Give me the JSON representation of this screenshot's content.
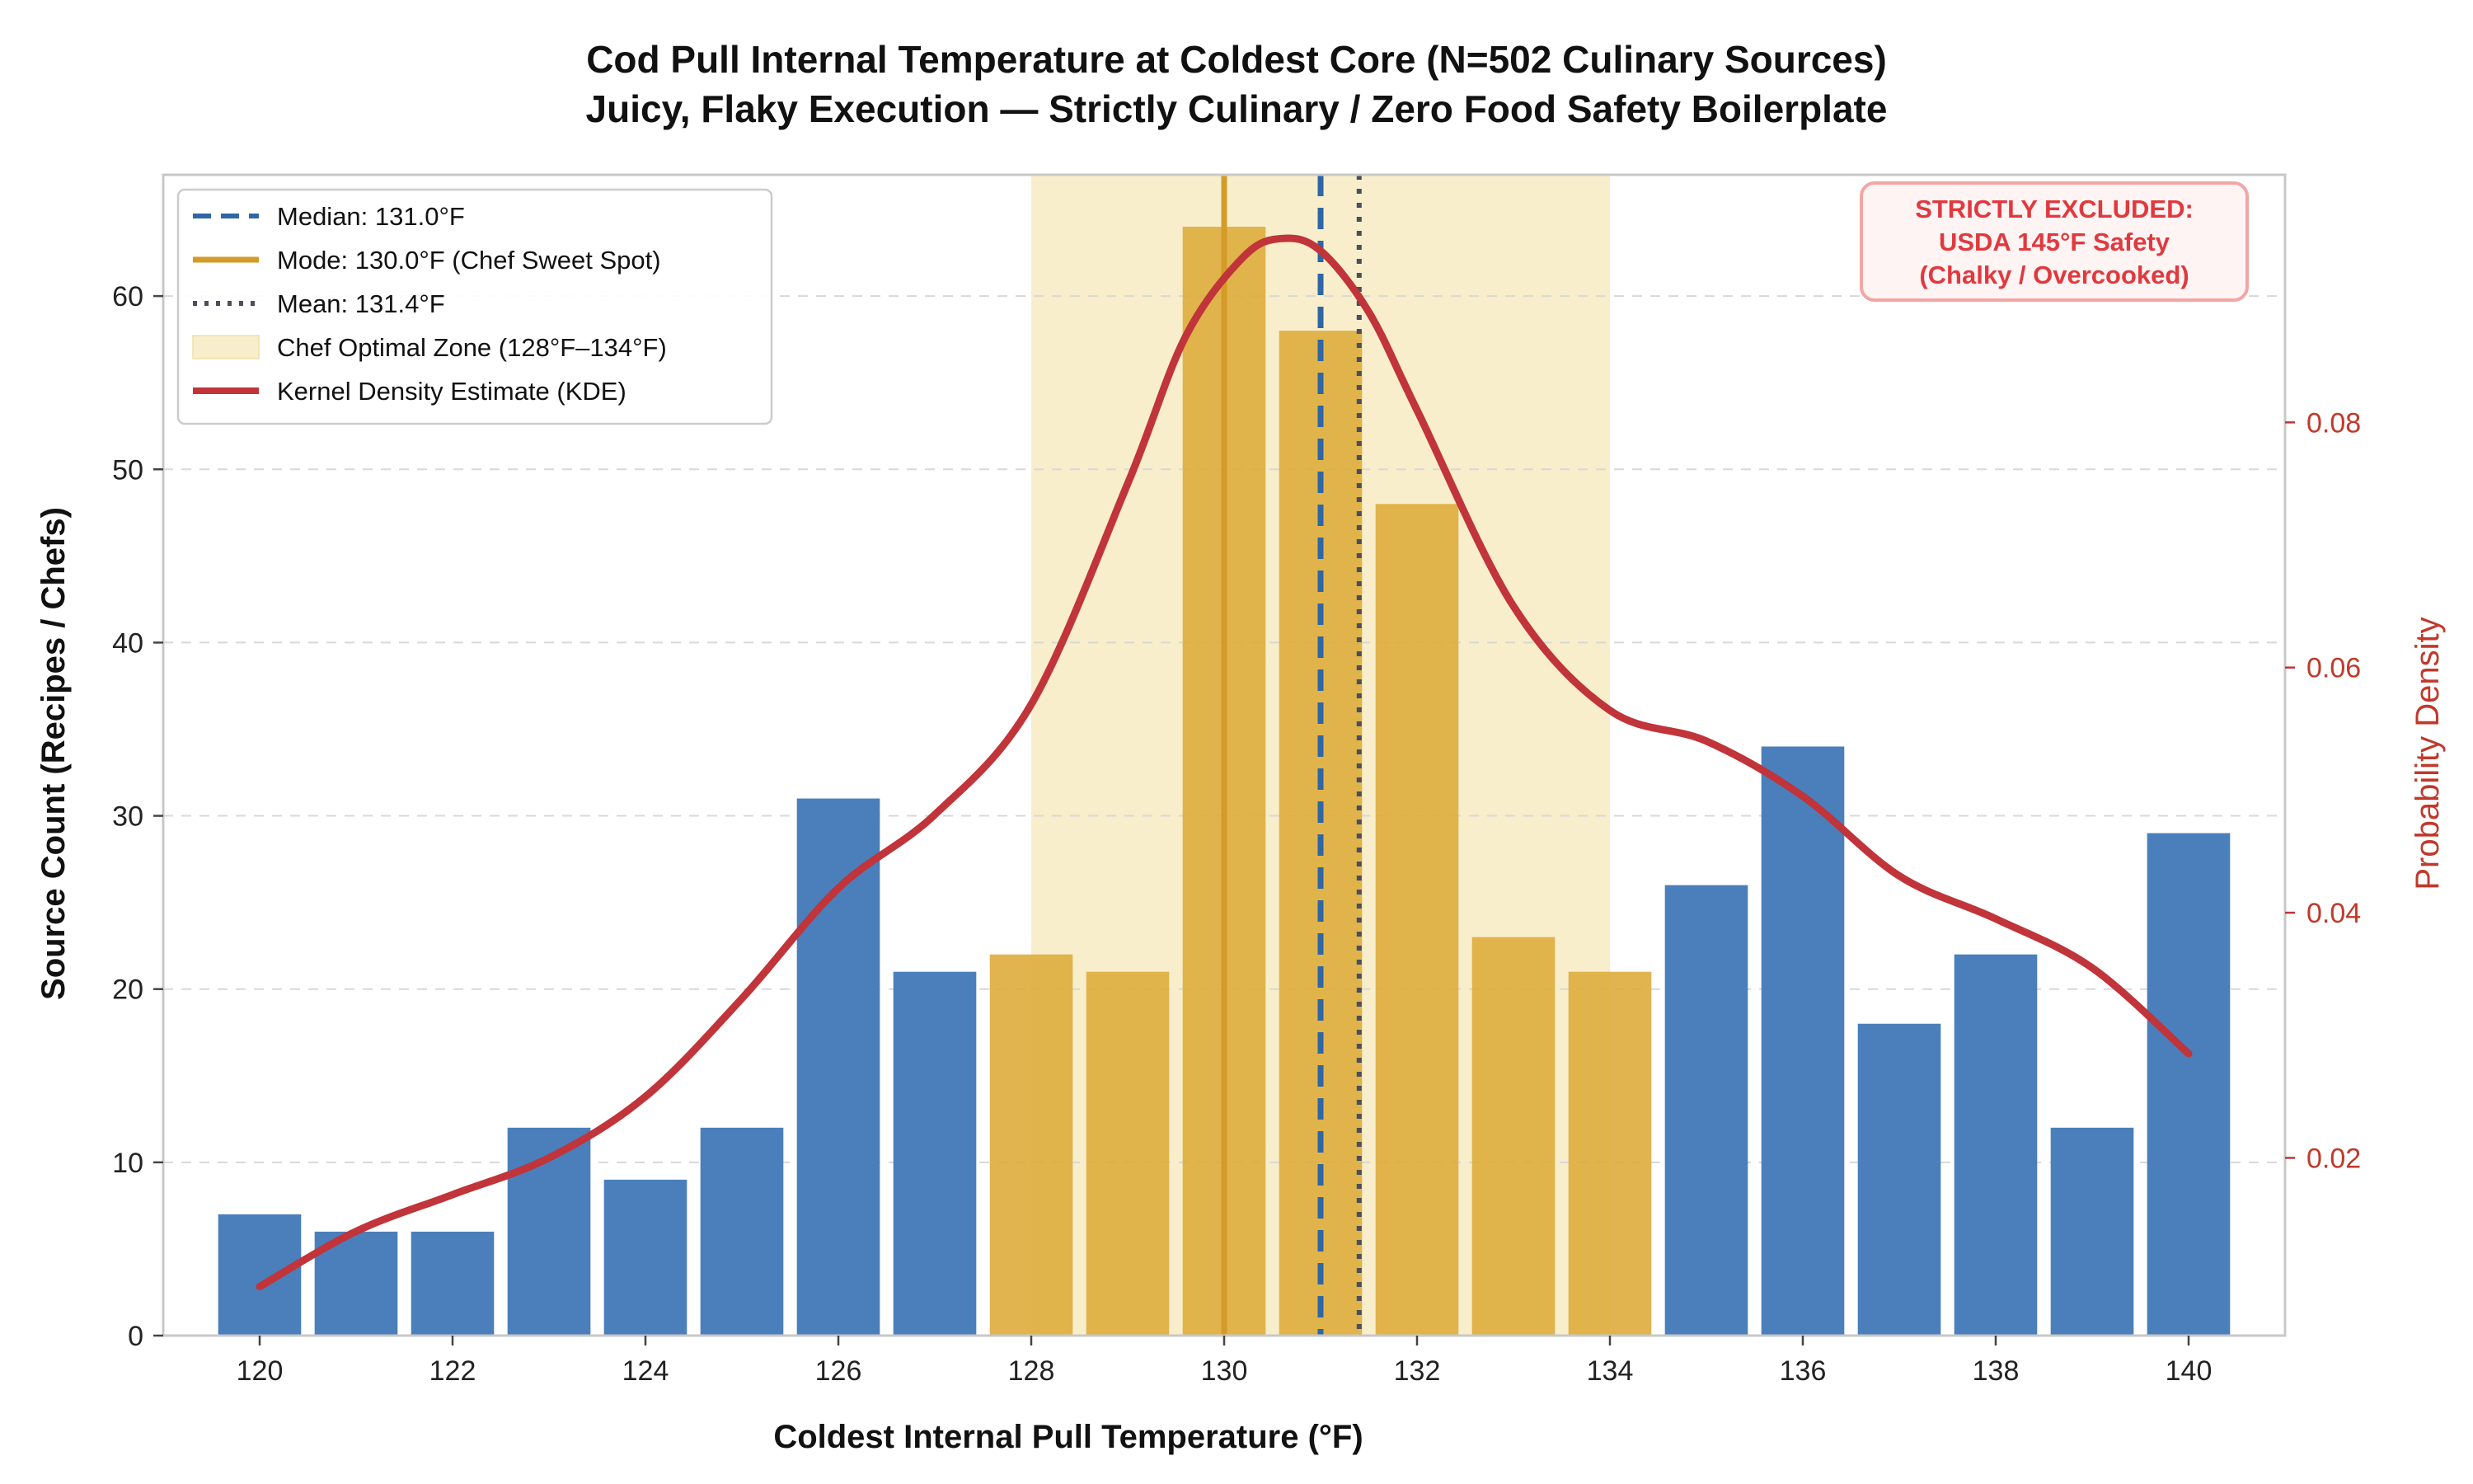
{
  "chart_data": {
    "type": "bar",
    "title": "Cod Pull Internal Temperature at Coldest Core (N=502 Culinary Sources)",
    "subtitle": "Juicy, Flaky Execution — Strictly Culinary / Zero Food Safety Boilerplate",
    "xlabel": "Coldest Internal Pull Temperature (°F)",
    "ylabel": "Source Count (Recipes / Chefs)",
    "ylabel_right": "Probability Density",
    "x": [
      120,
      121,
      122,
      123,
      124,
      125,
      126,
      127,
      128,
      129,
      130,
      131,
      132,
      133,
      134,
      135,
      136,
      137,
      138,
      139,
      140
    ],
    "values": [
      7,
      6,
      6,
      12,
      9,
      12,
      31,
      21,
      22,
      21,
      64,
      58,
      48,
      23,
      21,
      26,
      34,
      18,
      22,
      12,
      29
    ],
    "xlim": [
      119,
      141
    ],
    "ylim": [
      0,
      67
    ],
    "ylim_right": [
      0.0055,
      0.1002
    ],
    "x_ticks": [
      "120",
      "122",
      "124",
      "126",
      "128",
      "130",
      "132",
      "134",
      "136",
      "138",
      "140"
    ],
    "y_ticks": [
      "0",
      "10",
      "20",
      "30",
      "40",
      "50",
      "60"
    ],
    "y_ticks_right": [
      "0.02",
      "0.04",
      "0.06",
      "0.08"
    ],
    "optimal_zone": [
      128,
      134
    ],
    "median": 131.0,
    "mode": 130.0,
    "mean": 131.4,
    "kde": {
      "x": [
        120,
        121,
        122,
        123,
        124,
        125,
        126,
        127,
        128,
        129,
        129.6,
        130.2,
        130.6,
        131.0,
        131.5,
        132,
        133,
        134,
        135,
        136,
        137,
        138,
        139,
        140
      ],
      "y": [
        0.0095,
        0.014,
        0.017,
        0.02,
        0.025,
        0.033,
        0.042,
        0.048,
        0.057,
        0.075,
        0.087,
        0.0935,
        0.095,
        0.094,
        0.089,
        0.081,
        0.065,
        0.0565,
        0.054,
        0.0495,
        0.043,
        0.0395,
        0.0355,
        0.0285
      ]
    },
    "legend": {
      "position": "upper-left",
      "entries": [
        "Median: 131.0°F",
        "Mode: 130.0°F (Chef Sweet Spot)",
        "Mean: 131.4°F",
        "Chef Optimal Zone (128°F–134°F)",
        "Kernel Density Estimate (KDE)"
      ]
    },
    "annotation": {
      "position": "top-right",
      "lines": [
        "STRICTLY EXCLUDED:",
        "USDA 145°F Safety",
        "(Chalky / Overcooked)"
      ]
    },
    "colors": {
      "bar_default": "#4a7fbb",
      "bar_zone": "#deac3d",
      "zone_fill": "#f8eecb",
      "median_line": "#2e66a6",
      "mode_line": "#d49b28",
      "mean_line": "#4a4f5c",
      "kde_line": "#c0343a",
      "annotation_text": "#e0393e",
      "annotation_border": "#f2a6a6",
      "annotation_fill": "#fff4f4"
    },
    "grid": "horizontal dashed"
  }
}
